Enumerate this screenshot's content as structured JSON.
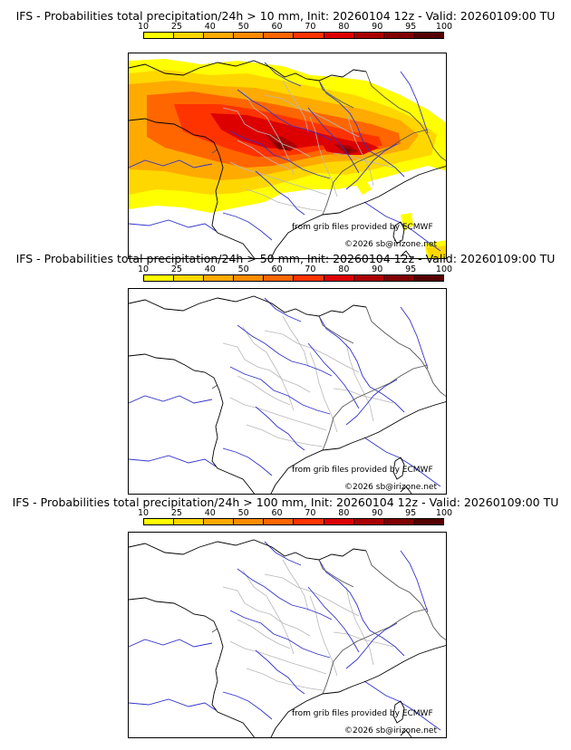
{
  "colorbar": {
    "labels": [
      "10",
      "25",
      "40",
      "50",
      "60",
      "70",
      "80",
      "90",
      "95",
      "100"
    ],
    "colors": [
      "#ffff00",
      "#ffd700",
      "#ffaa00",
      "#ff8c00",
      "#ff6600",
      "#ff3300",
      "#dd0000",
      "#aa0000",
      "#800000",
      "#550000"
    ]
  },
  "panels": [
    {
      "title": "IFS - Probabilities total precipitation/24h > 10 mm, Init: 20260104 12z - Valid: 20260109:00 TU",
      "credit_grib": "from grib files provided by ECMWF",
      "credit_copyright": "©2026 sb@irizone.net",
      "precip_field": true
    },
    {
      "title": "IFS - Probabilities total precipitation/24h > 50 mm, Init: 20260104 12z - Valid: 20260109:00 TU",
      "credit_grib": "from grib files provided by ECMWF",
      "credit_copyright": "©2026 sb@irizone.net",
      "precip_field": false
    },
    {
      "title": "IFS - Probabilities total precipitation/24h > 100 mm, Init: 20260104 12z - Valid: 20260109:00 TU",
      "credit_grib": "from grib files provided by ECMWF",
      "credit_copyright": "©2026 sb@irizone.net",
      "precip_field": false
    }
  ]
}
